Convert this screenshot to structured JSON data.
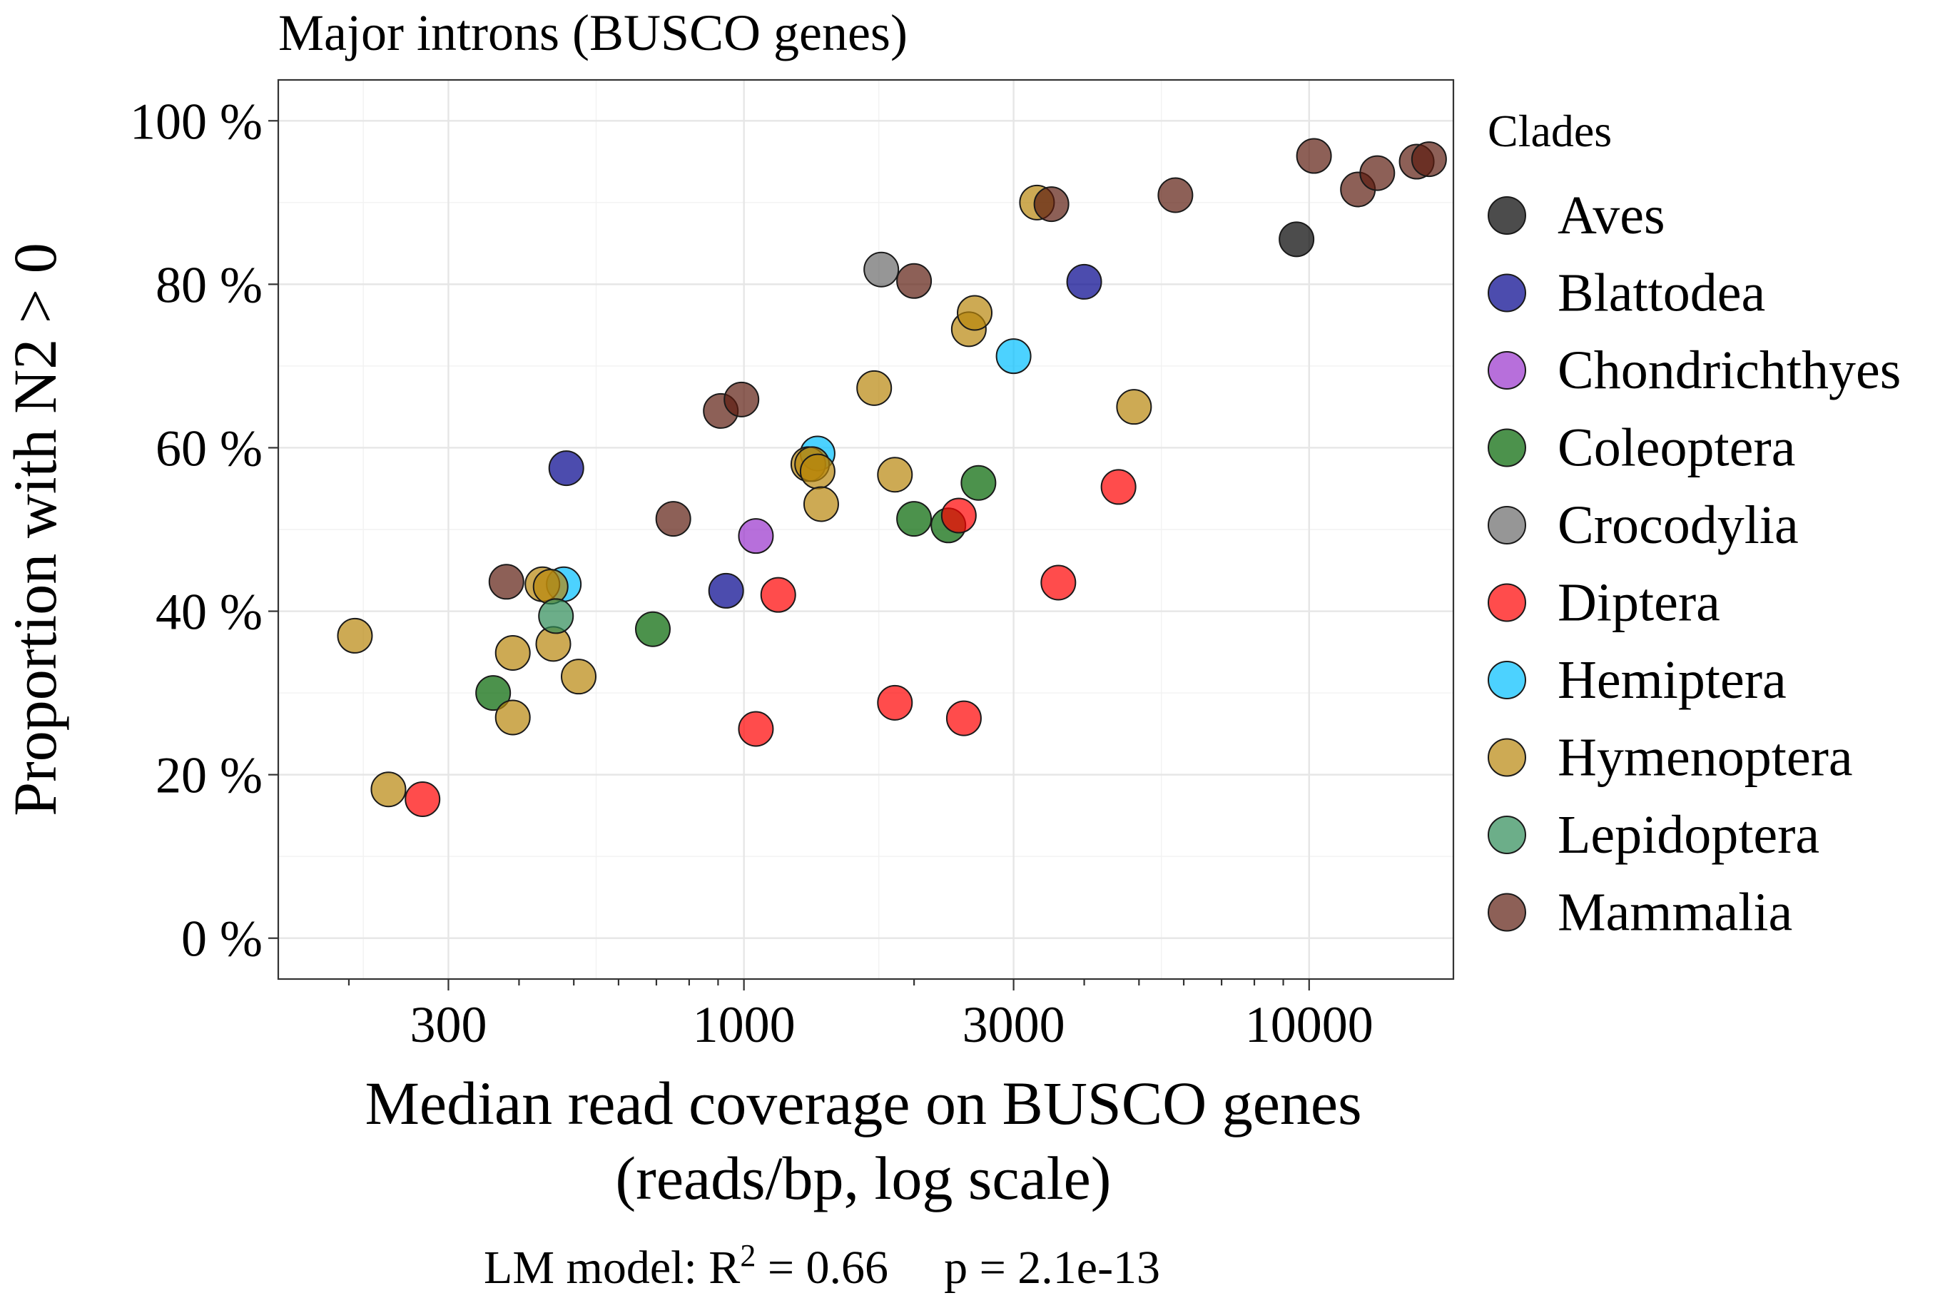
{
  "chart_data": {
    "type": "scatter",
    "title": "Major introns (BUSCO genes)",
    "xlabel_line1": "Median read coverage on BUSCO genes",
    "xlabel_line2": "(reads/bp, log scale)",
    "ylabel": "Proportion with N2 > 0",
    "caption": {
      "prefix": "LM model: R",
      "superscript": "2",
      "r2_text": " = 0.66",
      "p_text": "p = 2.1e-13"
    },
    "x_scale": "log10",
    "xlim": [
      150,
      18000
    ],
    "ylim": [
      -0.05,
      1.05
    ],
    "x_ticks": [
      300,
      1000,
      3000,
      10000
    ],
    "x_tick_labels": [
      "300",
      "1000",
      "3000",
      "10000"
    ],
    "x_minor_ticks": [
      200,
      400,
      500,
      600,
      700,
      800,
      900,
      2000,
      4000,
      5000,
      6000,
      7000,
      8000,
      9000
    ],
    "y_ticks": [
      0,
      0.2,
      0.4,
      0.6,
      0.8,
      1.0
    ],
    "y_tick_labels": [
      "0 %",
      "20 %",
      "40 %",
      "60 %",
      "80 %",
      "100 %"
    ],
    "grid": true,
    "legend": {
      "title": "Clades",
      "position": "right"
    },
    "series": [
      {
        "name": "Aves",
        "color": "#000000",
        "points": [
          [
            9500,
            0.855
          ]
        ]
      },
      {
        "name": "Blattodea",
        "color": "#00008B",
        "points": [
          [
            485,
            0.575
          ],
          [
            930,
            0.425
          ],
          [
            4000,
            0.803
          ]
        ]
      },
      {
        "name": "Chondrichthyes",
        "color": "#9932CC",
        "points": [
          [
            1050,
            0.492
          ]
        ]
      },
      {
        "name": "Coleoptera",
        "color": "#006400",
        "points": [
          [
            360,
            0.3
          ],
          [
            690,
            0.378
          ],
          [
            2000,
            0.513
          ],
          [
            2300,
            0.505
          ],
          [
            2600,
            0.557
          ]
        ]
      },
      {
        "name": "Crocodylia",
        "color": "#696969",
        "points": [
          [
            1750,
            0.818
          ]
        ]
      },
      {
        "name": "Diptera",
        "color": "#FF0000",
        "points": [
          [
            270,
            0.17
          ],
          [
            1050,
            0.256
          ],
          [
            1150,
            0.42
          ],
          [
            1850,
            0.288
          ],
          [
            2400,
            0.517
          ],
          [
            2450,
            0.269
          ],
          [
            3600,
            0.435
          ],
          [
            4600,
            0.552
          ]
        ]
      },
      {
        "name": "Hemiptera",
        "color": "#00BFFF",
        "points": [
          [
            480,
            0.433
          ],
          [
            1350,
            0.593
          ],
          [
            3000,
            0.712
          ]
        ]
      },
      {
        "name": "Hymenoptera",
        "color": "#B8860B",
        "points": [
          [
            205,
            0.37
          ],
          [
            235,
            0.182
          ],
          [
            390,
            0.349
          ],
          [
            390,
            0.27
          ],
          [
            440,
            0.433
          ],
          [
            455,
            0.43
          ],
          [
            460,
            0.36
          ],
          [
            510,
            0.32
          ],
          [
            1300,
            0.58
          ],
          [
            1320,
            0.58
          ],
          [
            1350,
            0.571
          ],
          [
            1370,
            0.531
          ],
          [
            1700,
            0.673
          ],
          [
            1850,
            0.567
          ],
          [
            2500,
            0.745
          ],
          [
            2560,
            0.765
          ],
          [
            3300,
            0.9
          ],
          [
            4900,
            0.65
          ]
        ]
      },
      {
        "name": "Lepidoptera",
        "color": "#2E8B57",
        "points": [
          [
            465,
            0.394
          ]
        ]
      },
      {
        "name": "Mammalia",
        "color": "#5C1D10",
        "points": [
          [
            380,
            0.436
          ],
          [
            750,
            0.513
          ],
          [
            910,
            0.645
          ],
          [
            990,
            0.659
          ],
          [
            2000,
            0.804
          ],
          [
            3500,
            0.898
          ],
          [
            5800,
            0.909
          ],
          [
            10200,
            0.957
          ],
          [
            12200,
            0.916
          ],
          [
            13200,
            0.936
          ],
          [
            15500,
            0.95
          ],
          [
            16300,
            0.953
          ]
        ]
      }
    ]
  }
}
